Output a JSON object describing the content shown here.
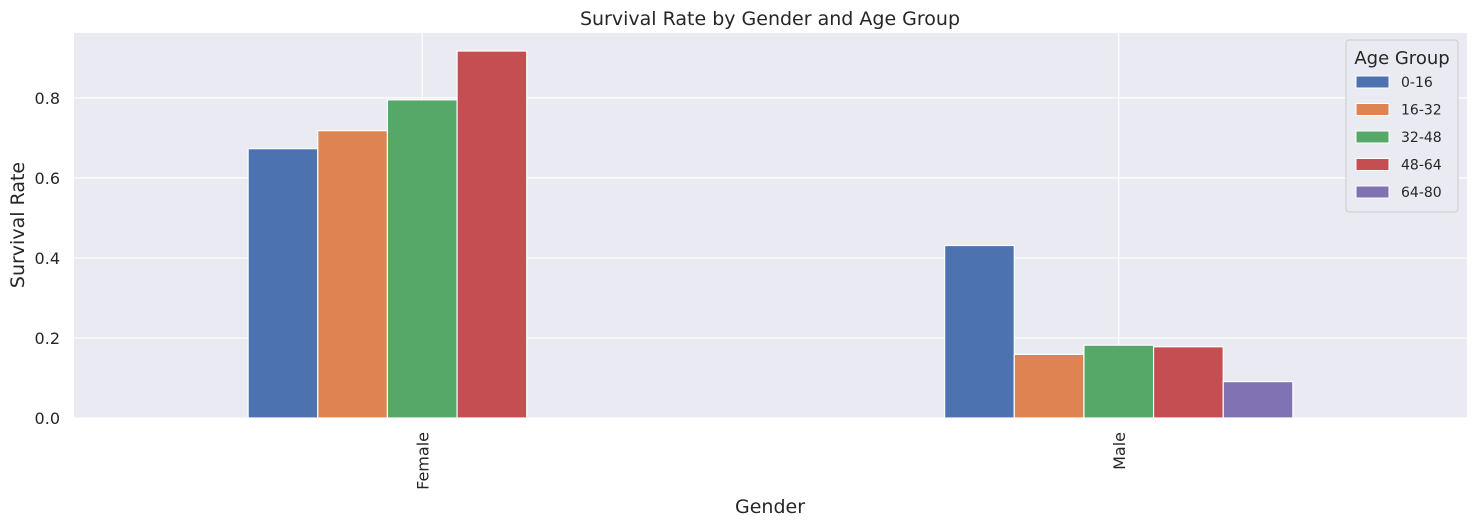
{
  "chart_data": {
    "type": "bar",
    "title": "Survival Rate by Gender and Age Group",
    "xlabel": "Gender",
    "ylabel": "Survival Rate",
    "categories": [
      "Female",
      "Male"
    ],
    "series": [
      {
        "name": "0-16",
        "color": "#4c72b0",
        "values": [
          0.673,
          0.431
        ]
      },
      {
        "name": "16-32",
        "color": "#dd8452",
        "values": [
          0.718,
          0.159
        ]
      },
      {
        "name": "32-48",
        "color": "#55a868",
        "values": [
          0.795,
          0.182
        ]
      },
      {
        "name": "48-64",
        "color": "#c44e52",
        "values": [
          0.917,
          0.178
        ]
      },
      {
        "name": "64-80",
        "color": "#8172b3",
        "values": [
          null,
          0.091
        ]
      }
    ],
    "ylim": [
      0,
      0.962
    ],
    "yticks": [
      0.0,
      0.2,
      0.4,
      0.6,
      0.8
    ],
    "ytick_labels": [
      "0.0",
      "0.2",
      "0.4",
      "0.6",
      "0.8"
    ],
    "grid": true,
    "legend": {
      "title": "Age Group",
      "placement": "top-right"
    },
    "colors": {
      "background": "#eaeaf2",
      "grid": "#ffffff",
      "text": "#262626"
    }
  }
}
